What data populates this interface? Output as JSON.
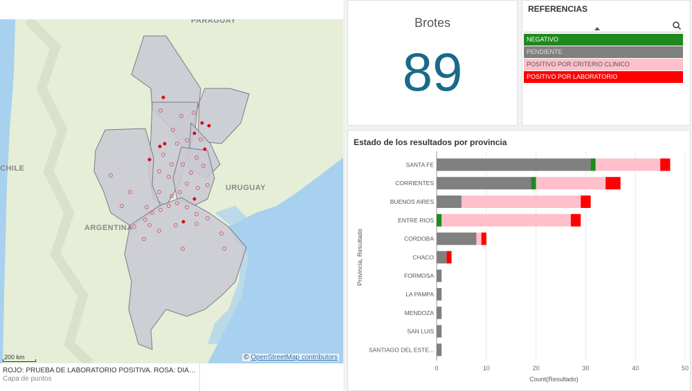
{
  "map": {
    "labels": {
      "paraguay": "PARAGUAY",
      "chile": "CHILE",
      "uruguay": "URUGUAY",
      "argentina": "ARGENTINA"
    },
    "scale_label": "200 km",
    "attribution_prefix": "©",
    "attribution_link": "OpenStreetMap contributors",
    "legend_title": "ROJO: PRUEBA DE LABORATORIO POSITIVA. ROSA: DIAGNÓ...",
    "legend_subtitle": "Capa de puntos",
    "colors": {
      "water": "#a8d0ef",
      "land": "#e8efd8",
      "province": "#c8c8d2",
      "point": "#d01020",
      "point_ring": "#d06070"
    }
  },
  "kpi": {
    "title": "Brotes",
    "value": "89",
    "color": "#196a8a"
  },
  "referencias": {
    "title": "REFERENCIAS",
    "items": [
      {
        "label": "NEGATIVO",
        "bg": "#1e8a1e",
        "fg": "#ffffff"
      },
      {
        "label": "PENDIENTE",
        "bg": "#808080",
        "fg": "#dddddd"
      },
      {
        "label": "POSITIVO POR CRITERIO CLINICO",
        "bg": "#ffc0cb",
        "fg": "#555555"
      },
      {
        "label": "POSITIVO POR LABORATORIO",
        "bg": "#ff0000",
        "fg": "#ffffff"
      }
    ]
  },
  "chart_data": {
    "type": "bar",
    "orientation": "horizontal",
    "stacked": true,
    "title": "Estado de los resultados por provincia",
    "xlabel": "Count(Resultado)",
    "ylabel": "Provincia, Resultado",
    "xlim": [
      0,
      50
    ],
    "xticks": [
      0,
      10,
      20,
      30,
      40,
      50
    ],
    "categories": [
      "SANTA FE",
      "CORRIENTES",
      "BUENOS AIRES",
      "ENTRE RIOS",
      "CORDOBA",
      "CHACO",
      "FORMOSA",
      "LA PAMPA",
      "MENDOZA",
      "SAN LUIS",
      "SANTIAGO DEL ESTE..."
    ],
    "series": [
      {
        "name": "PENDIENTE",
        "color": "#808080",
        "values": [
          31,
          19,
          5,
          0,
          8,
          2,
          1,
          1,
          1,
          1,
          1
        ]
      },
      {
        "name": "NEGATIVO",
        "color": "#1e8a1e",
        "values": [
          1,
          1,
          0,
          1,
          0,
          0,
          0,
          0,
          0,
          0,
          0
        ]
      },
      {
        "name": "POSITIVO POR CRITERIO CLINICO",
        "color": "#ffc0cb",
        "values": [
          13,
          14,
          24,
          26,
          1,
          0,
          0,
          0,
          0,
          0,
          0
        ]
      },
      {
        "name": "POSITIVO POR LABORATORIO",
        "color": "#ff0000",
        "values": [
          2,
          3,
          2,
          2,
          1,
          1,
          0,
          0,
          0,
          0,
          0
        ]
      }
    ]
  }
}
